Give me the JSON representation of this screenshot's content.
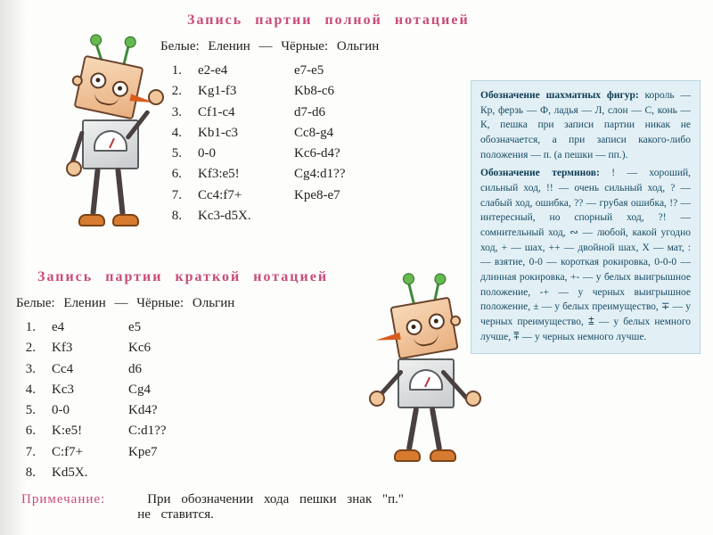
{
  "colors": {
    "title": "#c94b7a",
    "note_label": "#c94b7a",
    "text": "#222222",
    "sidebar_bg": "#e2f0f6",
    "sidebar_text": "#174a63"
  },
  "typography": {
    "title_fontsize": 16,
    "body_fontsize": 15,
    "sidebar_fontsize": 11.5,
    "font_family": "Georgia, Times New Roman, serif"
  },
  "full": {
    "title": "Запись   партии   полной   нотацией",
    "players": "Белые:   Еленин   —   Чёрные:   Ольгин",
    "layout": {
      "num_w": 24,
      "white_w": 100,
      "black_w": 100
    },
    "moves": [
      {
        "n": "1.",
        "w": "e2-e4",
        "b": "e7-e5"
      },
      {
        "n": "2.",
        "w": "Kg1-f3",
        "b": "Kb8-c6"
      },
      {
        "n": "3.",
        "w": "Cf1-c4",
        "b": "d7-d6"
      },
      {
        "n": "4.",
        "w": "Kb1-c3",
        "b": "Cc8-g4"
      },
      {
        "n": "5.",
        "w": "0-0",
        "b": "Kc6-d4?"
      },
      {
        "n": "6.",
        "w": "Kf3:e5!",
        "b": "Cg4:d1??"
      },
      {
        "n": "7.",
        "w": "Cc4:f7+",
        "b": "Kpe8-e7"
      },
      {
        "n": "8.",
        "w": "Kc3-d5X.",
        "b": ""
      }
    ]
  },
  "short": {
    "title": "Запись   партии   краткой   нотацией",
    "players": "Белые:   Еленин   —   Чёрные:   Ольгин",
    "layout": {
      "num_w": 22,
      "white_w": 78,
      "black_w": 80
    },
    "moves": [
      {
        "n": "1.",
        "w": "e4",
        "b": "e5"
      },
      {
        "n": "2.",
        "w": "Kf3",
        "b": "Kc6"
      },
      {
        "n": "3.",
        "w": "Cc4",
        "b": "d6"
      },
      {
        "n": "4.",
        "w": "Kc3",
        "b": "Cg4"
      },
      {
        "n": "5.",
        "w": "0-0",
        "b": "Kd4?"
      },
      {
        "n": "6.",
        "w": "K:e5!",
        "b": "C:d1??"
      },
      {
        "n": "7.",
        "w": "C:f7+",
        "b": "Kpe7"
      },
      {
        "n": "8.",
        "w": "Kd5X.",
        "b": ""
      }
    ]
  },
  "note": {
    "label": "Примечание:",
    "line1": "При   обозначении   хода   пешки   знак   \"п.\"",
    "line2": "не   ставится."
  },
  "sidebar": {
    "pieces_title": "Обозначение шахматных фигур:",
    "pieces_body": " король — Кр, ферзь — Ф, ладья — Л, слон — С, конь — К, пешка при записи партии никак не обозначается, а при записи какого-либо положения — п. (а пешки — пп.).",
    "terms_title": "Обозначение терминов:",
    "terms_body": " ! — хороший, сильный ход, !! — очень сильный ход, ? — слабый ход, ошибка, ?? — грубая ошибка, !? — интересный, но спорный ход, ?! — сомнительный ход, ∾ — любой, какой угодно ход, + — шах, ++ — двойной шах, X — мат, : — взятие, 0-0 — короткая рокировка, 0-0-0 — длинная рокировка, +- — у белых выигрышное положение, -+ — у черных выигрышное положение, ± — у белых преимущество, ∓ — у черных преимущество, ⩲ — у белых немного лучше, ⩱ — у черных немного лучше."
  }
}
